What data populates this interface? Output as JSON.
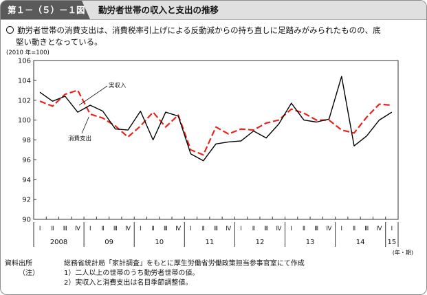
{
  "header": {
    "figure_label": "第１－（５）－１図",
    "figure_title": "勤労者世帯の収入と支出の推移"
  },
  "summary": {
    "line1": "勤労者世帯の消費支出は、消費税率引上げによる反動減からの持ち直しに足踏みがみられたものの、底",
    "line2": "堅い動きとなっている。"
  },
  "chart_data": {
    "type": "line",
    "ylabel": "(2010 年=100)",
    "ylim": [
      90,
      106
    ],
    "yticks": [
      90,
      92,
      94,
      96,
      98,
      100,
      102,
      104,
      106
    ],
    "x_unit_label": "(年・期)",
    "quarter_labels": [
      "Ⅰ",
      "Ⅱ",
      "Ⅲ",
      "Ⅳ",
      "Ⅰ",
      "Ⅱ",
      "Ⅲ",
      "Ⅳ",
      "Ⅰ",
      "Ⅱ",
      "Ⅲ",
      "Ⅳ",
      "Ⅰ",
      "Ⅱ",
      "Ⅲ",
      "Ⅳ",
      "Ⅰ",
      "Ⅱ",
      "Ⅲ",
      "Ⅳ",
      "Ⅰ",
      "Ⅱ",
      "Ⅲ",
      "Ⅳ",
      "Ⅰ",
      "Ⅱ",
      "Ⅲ",
      "Ⅳ",
      "Ⅰ"
    ],
    "year_labels": [
      "2008",
      "09",
      "10",
      "11",
      "12",
      "13",
      "14",
      "15"
    ],
    "year_group_sizes": [
      4,
      4,
      4,
      4,
      4,
      4,
      4,
      1
    ],
    "grid": false,
    "series": [
      {
        "name": "実収入",
        "color": "#000000",
        "style": "solid",
        "values": [
          102.8,
          101.9,
          102.4,
          100.8,
          101.5,
          100.9,
          99.1,
          99.0,
          100.9,
          98.0,
          100.8,
          100.4,
          96.6,
          95.9,
          97.6,
          97.8,
          97.9,
          98.9,
          98.2,
          99.6,
          101.7,
          100.0,
          99.8,
          100.1,
          104.4,
          97.4,
          98.4,
          100.0,
          100.8
        ]
      },
      {
        "name": "消費支出",
        "color": "#e8241c",
        "style": "dashed",
        "values": [
          101.9,
          101.4,
          102.6,
          103.0,
          100.6,
          100.2,
          99.4,
          98.3,
          99.4,
          100.8,
          99.3,
          100.5,
          97.0,
          96.5,
          99.3,
          98.6,
          99.1,
          99.0,
          99.7,
          100.0,
          101.1,
          100.7,
          100.0,
          100.0,
          99.0,
          98.7,
          100.3,
          101.6,
          101.5
        ]
      }
    ],
    "annotations": [
      "実収入",
      "消費支出"
    ]
  },
  "notes": [
    {
      "key": "資料出所",
      "text": "総務省統計局「家計調査」をもとに厚生労働省労働政策担当参事官室にて作成"
    },
    {
      "key": "（注）",
      "text": "1）二人以上の世帯のうち勤労者世帯の値。"
    },
    {
      "key": "",
      "text": "2）実収入と消費支出は名目季節調整値。"
    }
  ]
}
